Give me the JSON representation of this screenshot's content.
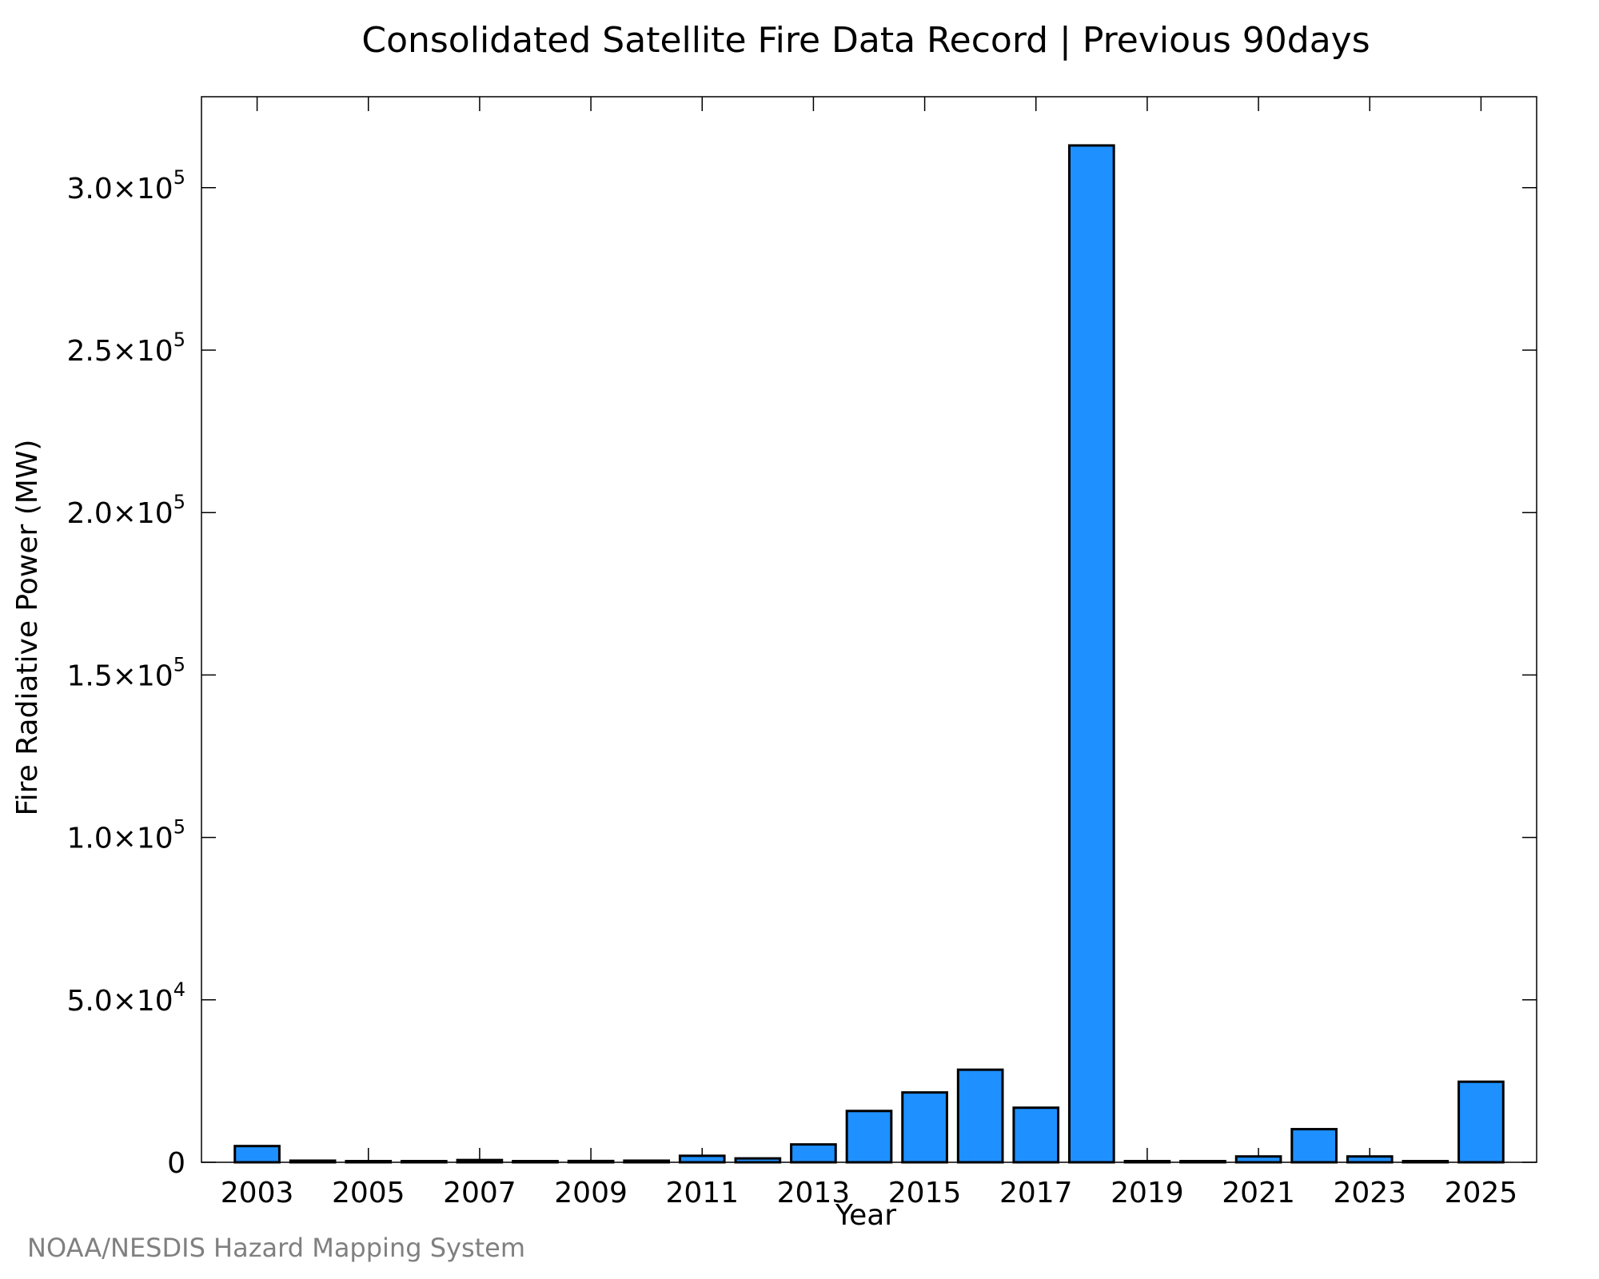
{
  "chart_data": {
    "type": "bar",
    "title": "Consolidated Satellite Fire Data Record | Previous 90days",
    "xlabel": "Year",
    "ylabel": "Fire Radiative Power (MW)",
    "x": [
      2003,
      2004,
      2005,
      2006,
      2007,
      2008,
      2009,
      2010,
      2011,
      2012,
      2013,
      2014,
      2015,
      2016,
      2017,
      2018,
      2019,
      2020,
      2021,
      2022,
      2023,
      2024,
      2025
    ],
    "values": [
      5000,
      500,
      300,
      100,
      700,
      100,
      400,
      500,
      2000,
      1200,
      5500,
      15800,
      21500,
      28500,
      16800,
      313000,
      200,
      200,
      1800,
      10200,
      1800,
      200,
      24800
    ],
    "ylim": [
      0,
      328000
    ],
    "xlim": [
      2002,
      2026
    ],
    "x_ticks": [
      {
        "value": 2003,
        "label": "2003"
      },
      {
        "value": 2005,
        "label": "2005"
      },
      {
        "value": 2007,
        "label": "2007"
      },
      {
        "value": 2009,
        "label": "2009"
      },
      {
        "value": 2011,
        "label": "2011"
      },
      {
        "value": 2013,
        "label": "2013"
      },
      {
        "value": 2015,
        "label": "2015"
      },
      {
        "value": 2017,
        "label": "2017"
      },
      {
        "value": 2019,
        "label": "2019"
      },
      {
        "value": 2021,
        "label": "2021"
      },
      {
        "value": 2023,
        "label": "2023"
      },
      {
        "value": 2025,
        "label": "2025"
      }
    ],
    "y_ticks": [
      {
        "value": 0,
        "mantissa": "0",
        "exp": ""
      },
      {
        "value": 50000,
        "mantissa": "5.0×10",
        "exp": "4"
      },
      {
        "value": 100000,
        "mantissa": "1.0×10",
        "exp": "5"
      },
      {
        "value": 150000,
        "mantissa": "1.5×10",
        "exp": "5"
      },
      {
        "value": 200000,
        "mantissa": "2.0×10",
        "exp": "5"
      },
      {
        "value": 250000,
        "mantissa": "2.5×10",
        "exp": "5"
      },
      {
        "value": 300000,
        "mantissa": "3.0×10",
        "exp": "5"
      }
    ],
    "bar_color": "#1e90ff",
    "grid": false,
    "legend": "none"
  },
  "credit": "NOAA/NESDIS Hazard Mapping System"
}
